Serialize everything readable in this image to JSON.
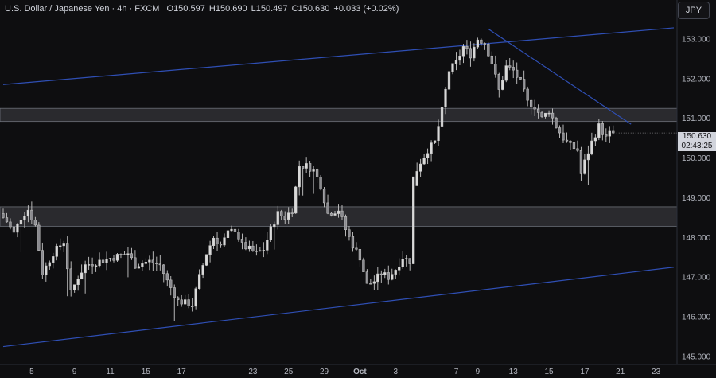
{
  "header": {
    "symbol": "U.S. Dollar / Japanese Yen · 4h · FXCM",
    "open_label": "O",
    "open": "150.597",
    "high_label": "H",
    "high": "150.690",
    "low_label": "L",
    "low": "150.497",
    "close_label": "C",
    "close": "150.630",
    "change": "+0.033 (+0.02%)"
  },
  "currency_button": "JPY",
  "price_tag": {
    "price": "150.630",
    "countdown": "02:43:25"
  },
  "colors": {
    "background": "#0e0e10",
    "candle": "#c8c8c8",
    "trendline": "#2f4fb5",
    "zone": "#2a2a2e"
  },
  "chart_data": {
    "type": "candlestick",
    "y_ticks": [
      "153.000",
      "152.000",
      "151.000",
      "150.000",
      "149.000",
      "148.000",
      "147.000",
      "146.000",
      "145.000"
    ],
    "y_tick_values": [
      153,
      152,
      151,
      150,
      149,
      148,
      147,
      146,
      145
    ],
    "ylim": [
      144.8,
      153.98
    ],
    "x_ticks": [
      "5",
      "9",
      "11",
      "15",
      "17",
      "23",
      "25",
      "29",
      "Oct",
      "3",
      "7",
      "9",
      "13",
      "15",
      "17",
      "21",
      "23"
    ],
    "bars_total": 188,
    "x_tick_bars": [
      8,
      20,
      30,
      40,
      50,
      70,
      80,
      90,
      100,
      110,
      127,
      133,
      143,
      153,
      163,
      173,
      183
    ],
    "zones": [
      {
        "top": 151.25,
        "bottom": 150.92
      },
      {
        "top": 148.77,
        "bottom": 148.28
      }
    ],
    "trendlines": [
      {
        "from": {
          "bar": 0,
          "price": 151.85
        },
        "to": {
          "bar": 188,
          "price": 153.28
        }
      },
      {
        "from": {
          "bar": 0,
          "price": 145.25
        },
        "to": {
          "bar": 188,
          "price": 147.25
        }
      },
      {
        "from": {
          "bar": 136,
          "price": 153.25
        },
        "to": {
          "bar": 176,
          "price": 150.85
        }
      }
    ],
    "anchors": [
      [
        0,
        148.6
      ],
      [
        2,
        148.4
      ],
      [
        4,
        148.1
      ],
      [
        6,
        148.5
      ],
      [
        8,
        148.7
      ],
      [
        10,
        148.3
      ],
      [
        12,
        147.1
      ],
      [
        15,
        147.6
      ],
      [
        18,
        147.9
      ],
      [
        20,
        146.6
      ],
      [
        22,
        147.0
      ],
      [
        24,
        147.3
      ],
      [
        28,
        147.4
      ],
      [
        32,
        147.5
      ],
      [
        36,
        147.6
      ],
      [
        38,
        147.3
      ],
      [
        42,
        147.4
      ],
      [
        45,
        147.3
      ],
      [
        47,
        146.9
      ],
      [
        50,
        146.4
      ],
      [
        54,
        146.3
      ],
      [
        56,
        147.0
      ],
      [
        58,
        147.6
      ],
      [
        60,
        148.0
      ],
      [
        62,
        147.8
      ],
      [
        64,
        148.1
      ],
      [
        66,
        148.2
      ],
      [
        68,
        147.8
      ],
      [
        70,
        147.7
      ],
      [
        72,
        147.6
      ],
      [
        74,
        147.7
      ],
      [
        76,
        148.2
      ],
      [
        78,
        148.6
      ],
      [
        80,
        148.5
      ],
      [
        82,
        148.7
      ],
      [
        84,
        149.8
      ],
      [
        86,
        149.8
      ],
      [
        88,
        149.7
      ],
      [
        90,
        149.3
      ],
      [
        92,
        148.6
      ],
      [
        95,
        148.7
      ],
      [
        97,
        148.2
      ],
      [
        99,
        147.8
      ],
      [
        101,
        147.5
      ],
      [
        103,
        146.8
      ],
      [
        105,
        146.9
      ],
      [
        107,
        147.1
      ],
      [
        109,
        147.0
      ],
      [
        111,
        147.2
      ],
      [
        113,
        147.5
      ],
      [
        115,
        147.4
      ],
      [
        116,
        149.5
      ],
      [
        118,
        149.9
      ],
      [
        120,
        150.2
      ],
      [
        122,
        150.4
      ],
      [
        124,
        151.2
      ],
      [
        126,
        152.2
      ],
      [
        128,
        152.4
      ],
      [
        130,
        152.8
      ],
      [
        132,
        152.6
      ],
      [
        134,
        153.0
      ],
      [
        136,
        152.9
      ],
      [
        138,
        152.4
      ],
      [
        140,
        151.7
      ],
      [
        142,
        152.3
      ],
      [
        144,
        152.2
      ],
      [
        146,
        151.9
      ],
      [
        148,
        151.4
      ],
      [
        150,
        151.3
      ],
      [
        152,
        151.0
      ],
      [
        154,
        151.2
      ],
      [
        156,
        150.8
      ],
      [
        158,
        150.5
      ],
      [
        160,
        150.3
      ],
      [
        162,
        150.2
      ],
      [
        163,
        149.6
      ],
      [
        164,
        149.9
      ],
      [
        166,
        150.4
      ],
      [
        168,
        150.8
      ],
      [
        170,
        150.5
      ],
      [
        171,
        150.63
      ]
    ]
  }
}
